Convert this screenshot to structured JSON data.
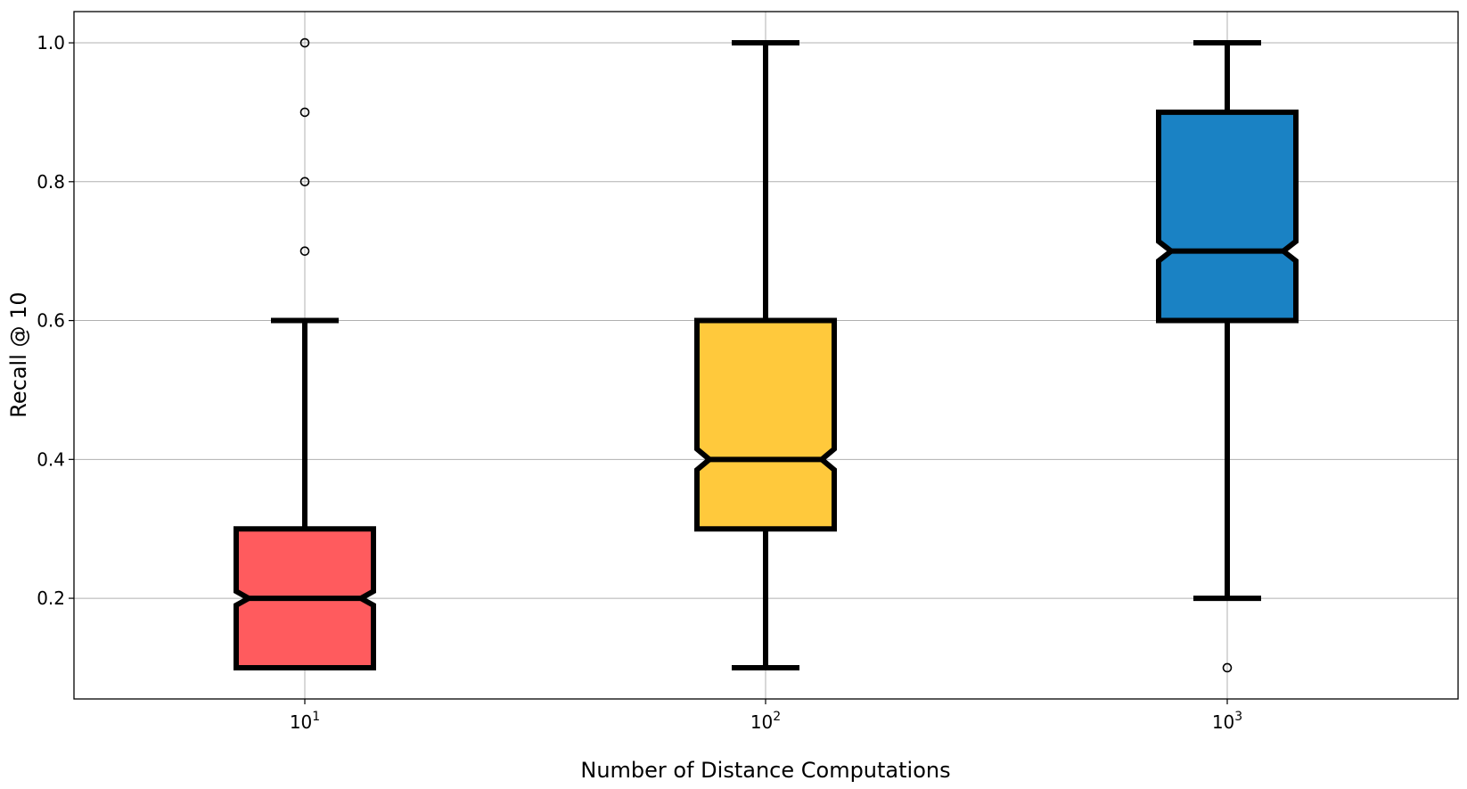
{
  "chart_data": {
    "type": "box",
    "title": "",
    "xlabel": "Number of Distance Computations",
    "ylabel": "Recall @ 10",
    "ylim": [
      0.055,
      1.045
    ],
    "yticks": [
      0.2,
      0.4,
      0.6,
      0.8,
      1.0
    ],
    "ytick_labels": [
      "0.2",
      "0.4",
      "0.6",
      "0.8",
      "1.0"
    ],
    "grid": true,
    "notched": true,
    "categories": [
      {
        "base": "10",
        "exp": "1"
      },
      {
        "base": "10",
        "exp": "2"
      },
      {
        "base": "10",
        "exp": "3"
      }
    ],
    "boxes": [
      {
        "q1": 0.1,
        "median": 0.2,
        "q3": 0.3,
        "notch_low": 0.19,
        "notch_high": 0.21,
        "whisker_low": 0.1,
        "whisker_high": 0.6,
        "outliers": [
          0.7,
          0.8,
          0.9,
          1.0
        ],
        "color": "#ff5b5e"
      },
      {
        "q1": 0.3,
        "median": 0.4,
        "q3": 0.6,
        "notch_low": 0.385,
        "notch_high": 0.415,
        "whisker_low": 0.1,
        "whisker_high": 1.0,
        "outliers": [],
        "color": "#ffc93c"
      },
      {
        "q1": 0.6,
        "median": 0.7,
        "q3": 0.9,
        "notch_low": 0.686,
        "notch_high": 0.714,
        "whisker_low": 0.2,
        "whisker_high": 1.0,
        "outliers": [
          0.1
        ],
        "color": "#1a82c4"
      }
    ]
  }
}
